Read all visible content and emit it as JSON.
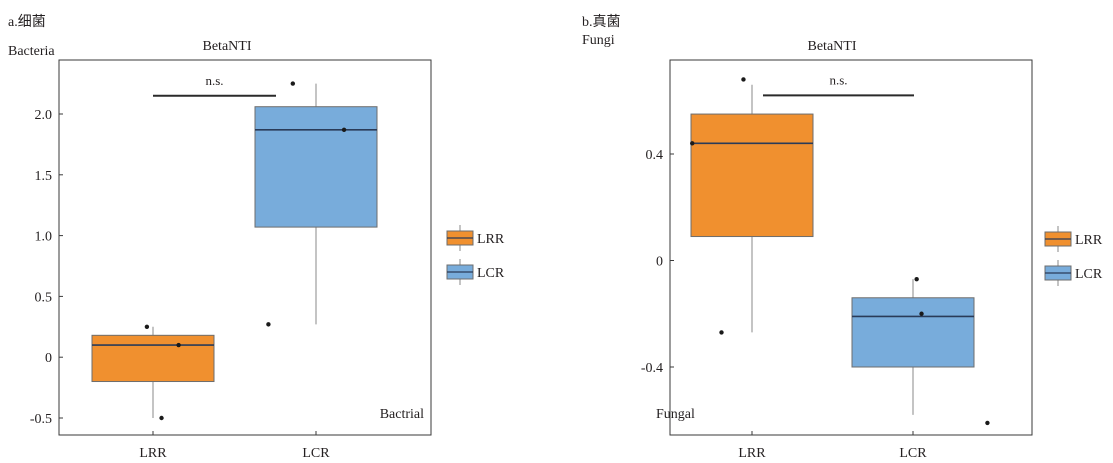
{
  "figure": {
    "panels": [
      {
        "panel_label": "a.细菌",
        "group_label": "Bacteria",
        "title": "BetaNTI",
        "corner_label": "Bactrial",
        "significance": "n.s.",
        "legend": [
          "LRR",
          "LCR"
        ]
      },
      {
        "panel_label": "b.真菌",
        "group_label": "Fungi",
        "title": "BetaNTI",
        "corner_label": "Fungal",
        "significance": "n.s.",
        "legend": [
          "LRR",
          "LCR"
        ]
      }
    ]
  },
  "chart_data": [
    {
      "type": "box",
      "title": "BetaNTI",
      "xlabel": "",
      "ylabel": "",
      "ylim": [
        -0.6,
        2.4
      ],
      "yticks": [
        2.0,
        1.5,
        1.0,
        0.5,
        0,
        -0.5
      ],
      "ytick_labels": [
        "2.0",
        "1.5",
        "1.0",
        "0.5",
        "0",
        "-0.5"
      ],
      "grid": false,
      "legend_position": "right",
      "categories": [
        "LRR",
        "LCR"
      ],
      "series": [
        {
          "name": "LRR",
          "color": "#f0902f",
          "q1": -0.2,
          "median": 0.1,
          "q3": 0.18,
          "whisker_low": -0.5,
          "whisker_high": 0.25,
          "points": [
            [
              -0.05,
              0.25
            ],
            [
              0.21,
              0.1
            ],
            [
              0.07,
              -0.5
            ]
          ]
        },
        {
          "name": "LCR",
          "color": "#78acdb",
          "q1": 1.07,
          "median": 1.87,
          "q3": 2.06,
          "whisker_low": 0.27,
          "whisker_high": 2.25,
          "points": [
            [
              -0.39,
              0.27
            ],
            [
              -0.19,
              2.25
            ],
            [
              0.23,
              1.87
            ]
          ]
        }
      ],
      "significance_bar": {
        "label": "n.s.",
        "y": 2.15
      }
    },
    {
      "type": "box",
      "title": "BetaNTI",
      "xlabel": "",
      "ylabel": "",
      "ylim": [
        -0.7,
        0.72
      ],
      "yticks": [
        0.4,
        0,
        -0.4
      ],
      "ytick_labels": [
        "0.4",
        "0",
        "-0.4"
      ],
      "grid": false,
      "legend_position": "right",
      "categories": [
        "LRR",
        "LCR"
      ],
      "series": [
        {
          "name": "LRR",
          "color": "#f0902f",
          "q1": 0.09,
          "median": 0.44,
          "q3": 0.55,
          "whisker_low": -0.27,
          "whisker_high": 0.66,
          "points": [
            [
              -0.49,
              0.44
            ],
            [
              -0.25,
              -0.27
            ],
            [
              -0.07,
              0.68
            ]
          ]
        },
        {
          "name": "LCR",
          "color": "#78acdb",
          "q1": -0.4,
          "median": -0.21,
          "q3": -0.14,
          "whisker_low": -0.58,
          "whisker_high": -0.07,
          "points": [
            [
              0.03,
              -0.07
            ],
            [
              0.07,
              -0.2
            ],
            [
              0.61,
              -0.61
            ]
          ]
        }
      ],
      "significance_bar": {
        "label": "n.s.",
        "y": 0.62
      }
    }
  ]
}
